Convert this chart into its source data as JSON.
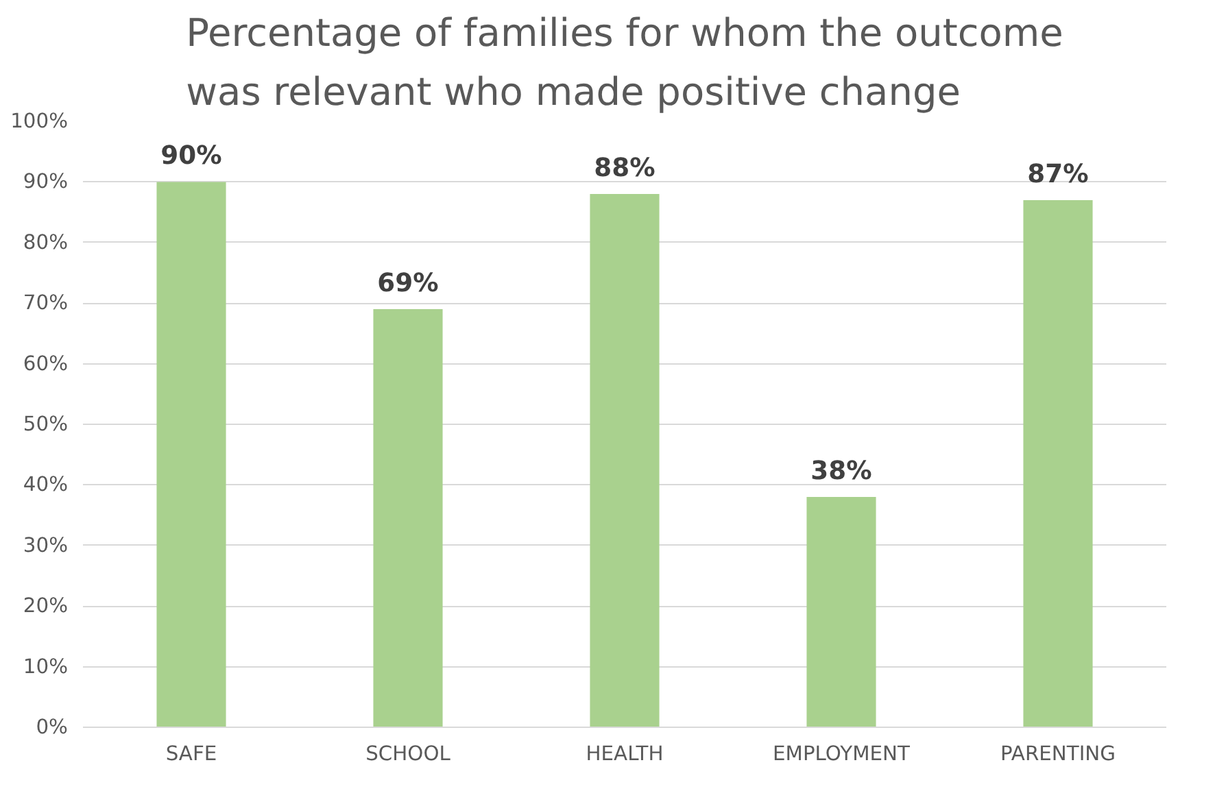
{
  "chart_data": {
    "type": "bar",
    "title": "Percentage of families for whom the outcome\nwas relevant who made positive change",
    "categories": [
      "SAFE",
      "SCHOOL",
      "HEALTH",
      "EMPLOYMENT",
      "PARENTING"
    ],
    "values": [
      90,
      69,
      88,
      38,
      87
    ],
    "value_labels": [
      "90%",
      "69%",
      "88%",
      "38%",
      "87%"
    ],
    "color": "#a9d18e",
    "ylim": [
      0,
      100
    ],
    "yticks": [
      {
        "value": 0,
        "label": "0%"
      },
      {
        "value": 10,
        "label": "10%"
      },
      {
        "value": 20,
        "label": "20%"
      },
      {
        "value": 30,
        "label": "30%"
      },
      {
        "value": 40,
        "label": "40%"
      },
      {
        "value": 50,
        "label": "50%"
      },
      {
        "value": 60,
        "label": "60%"
      },
      {
        "value": 70,
        "label": "70%"
      },
      {
        "value": 80,
        "label": "80%"
      },
      {
        "value": 90,
        "label": "90%"
      },
      {
        "value": 100,
        "label": "100%"
      }
    ],
    "grid": "y"
  }
}
